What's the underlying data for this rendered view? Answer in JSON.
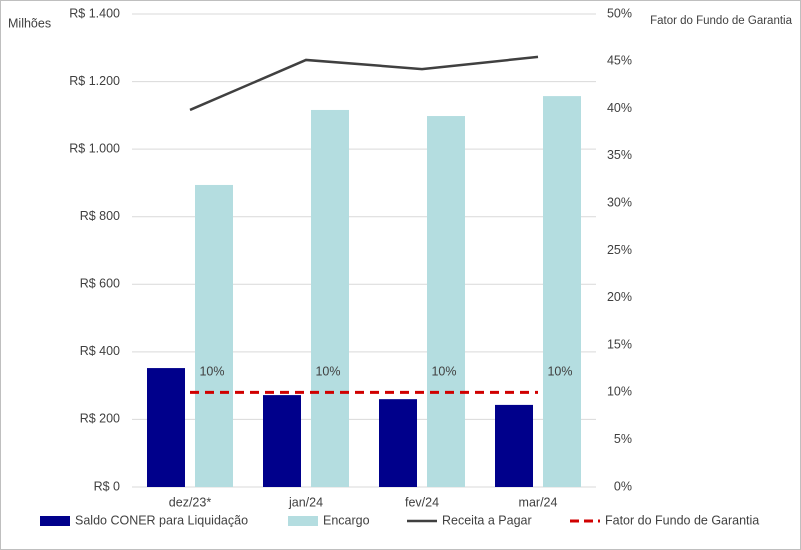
{
  "chart_data": {
    "type": "bar",
    "y_label": "Milhões",
    "y2_label": "Fator do Fundo de Garantia",
    "categories": [
      "dez/23*",
      "jan/24",
      "fev/24",
      "mar/24"
    ],
    "series": [
      {
        "name": "Saldo CONER para Liquidação",
        "type": "bar",
        "color": "#00008b",
        "values": [
          352,
          272,
          260,
          243
        ]
      },
      {
        "name": "Encargo",
        "type": "bar",
        "color": "#b4dde0",
        "values": [
          894,
          1116,
          1098,
          1157
        ]
      },
      {
        "name": "Receita a Pagar",
        "type": "line",
        "color": "#404040",
        "values": [
          1116,
          1264,
          1237,
          1273
        ]
      },
      {
        "name": "Fator do Fundo de Garantia",
        "type": "line",
        "dashed": true,
        "axis": "y2",
        "color": "#d00000",
        "values": [
          10,
          10,
          10,
          10
        ],
        "value_labels": [
          "10%",
          "10%",
          "10%",
          "10%"
        ]
      }
    ],
    "ylim": [
      0,
      1400
    ],
    "yticks": [
      {
        "value": 0,
        "label": "R$ 0"
      },
      {
        "value": 200,
        "label": "R$ 200"
      },
      {
        "value": 400,
        "label": "R$ 400"
      },
      {
        "value": 600,
        "label": "R$ 600"
      },
      {
        "value": 800,
        "label": "R$ 800"
      },
      {
        "value": 1000,
        "label": "R$ 1.000"
      },
      {
        "value": 1200,
        "label": "R$ 1.200"
      },
      {
        "value": 1400,
        "label": "R$ 1.400"
      }
    ],
    "y2lim": [
      0,
      50
    ],
    "y2ticks": [
      {
        "value": 0,
        "label": "0%"
      },
      {
        "value": 5,
        "label": "5%"
      },
      {
        "value": 10,
        "label": "10%"
      },
      {
        "value": 15,
        "label": "15%"
      },
      {
        "value": 20,
        "label": "20%"
      },
      {
        "value": 25,
        "label": "25%"
      },
      {
        "value": 30,
        "label": "30%"
      },
      {
        "value": 35,
        "label": "35%"
      },
      {
        "value": 40,
        "label": "40%"
      },
      {
        "value": 45,
        "label": "45%"
      },
      {
        "value": 50,
        "label": "50%"
      }
    ],
    "grid": true,
    "legend": "bottom"
  }
}
